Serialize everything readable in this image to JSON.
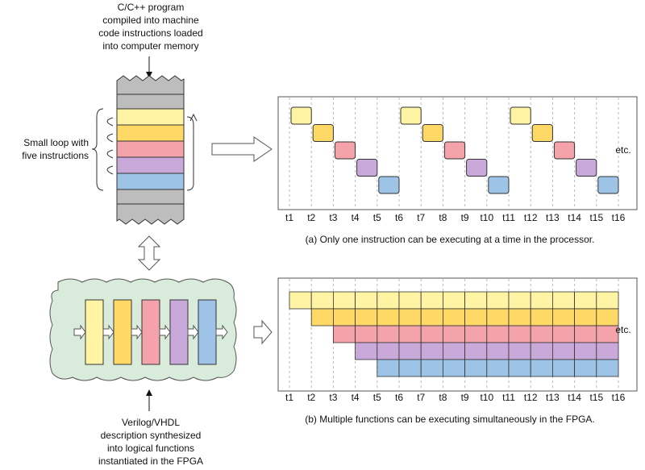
{
  "top_note": {
    "lines": [
      "C/C++ program",
      "compiled into machine",
      "code instructions loaded",
      "into computer memory"
    ]
  },
  "loop_label": {
    "lines": [
      "Small loop with",
      "five instructions"
    ]
  },
  "bottom_note": {
    "lines": [
      "Verilog/VHDL",
      "description synthesized",
      "into logical functions",
      "instantiated in the FPGA"
    ]
  },
  "panel_a": {
    "time_labels": [
      "t1",
      "t2",
      "t3",
      "t4",
      "t5",
      "t6",
      "t7",
      "t8",
      "t9",
      "t10",
      "t11",
      "t12",
      "t13",
      "t14",
      "t15",
      "t16"
    ],
    "etc": "etc.",
    "caption": "(a) Only one instruction can be executing at a time in the processor."
  },
  "panel_b": {
    "time_labels": [
      "t1",
      "t2",
      "t3",
      "t4",
      "t5",
      "t6",
      "t7",
      "t8",
      "t9",
      "t10",
      "t11",
      "t12",
      "t13",
      "t14",
      "t15",
      "t16"
    ],
    "etc": "etc.",
    "caption": "(b) Multiple functions can be executing simultaneously in the FPGA."
  }
}
